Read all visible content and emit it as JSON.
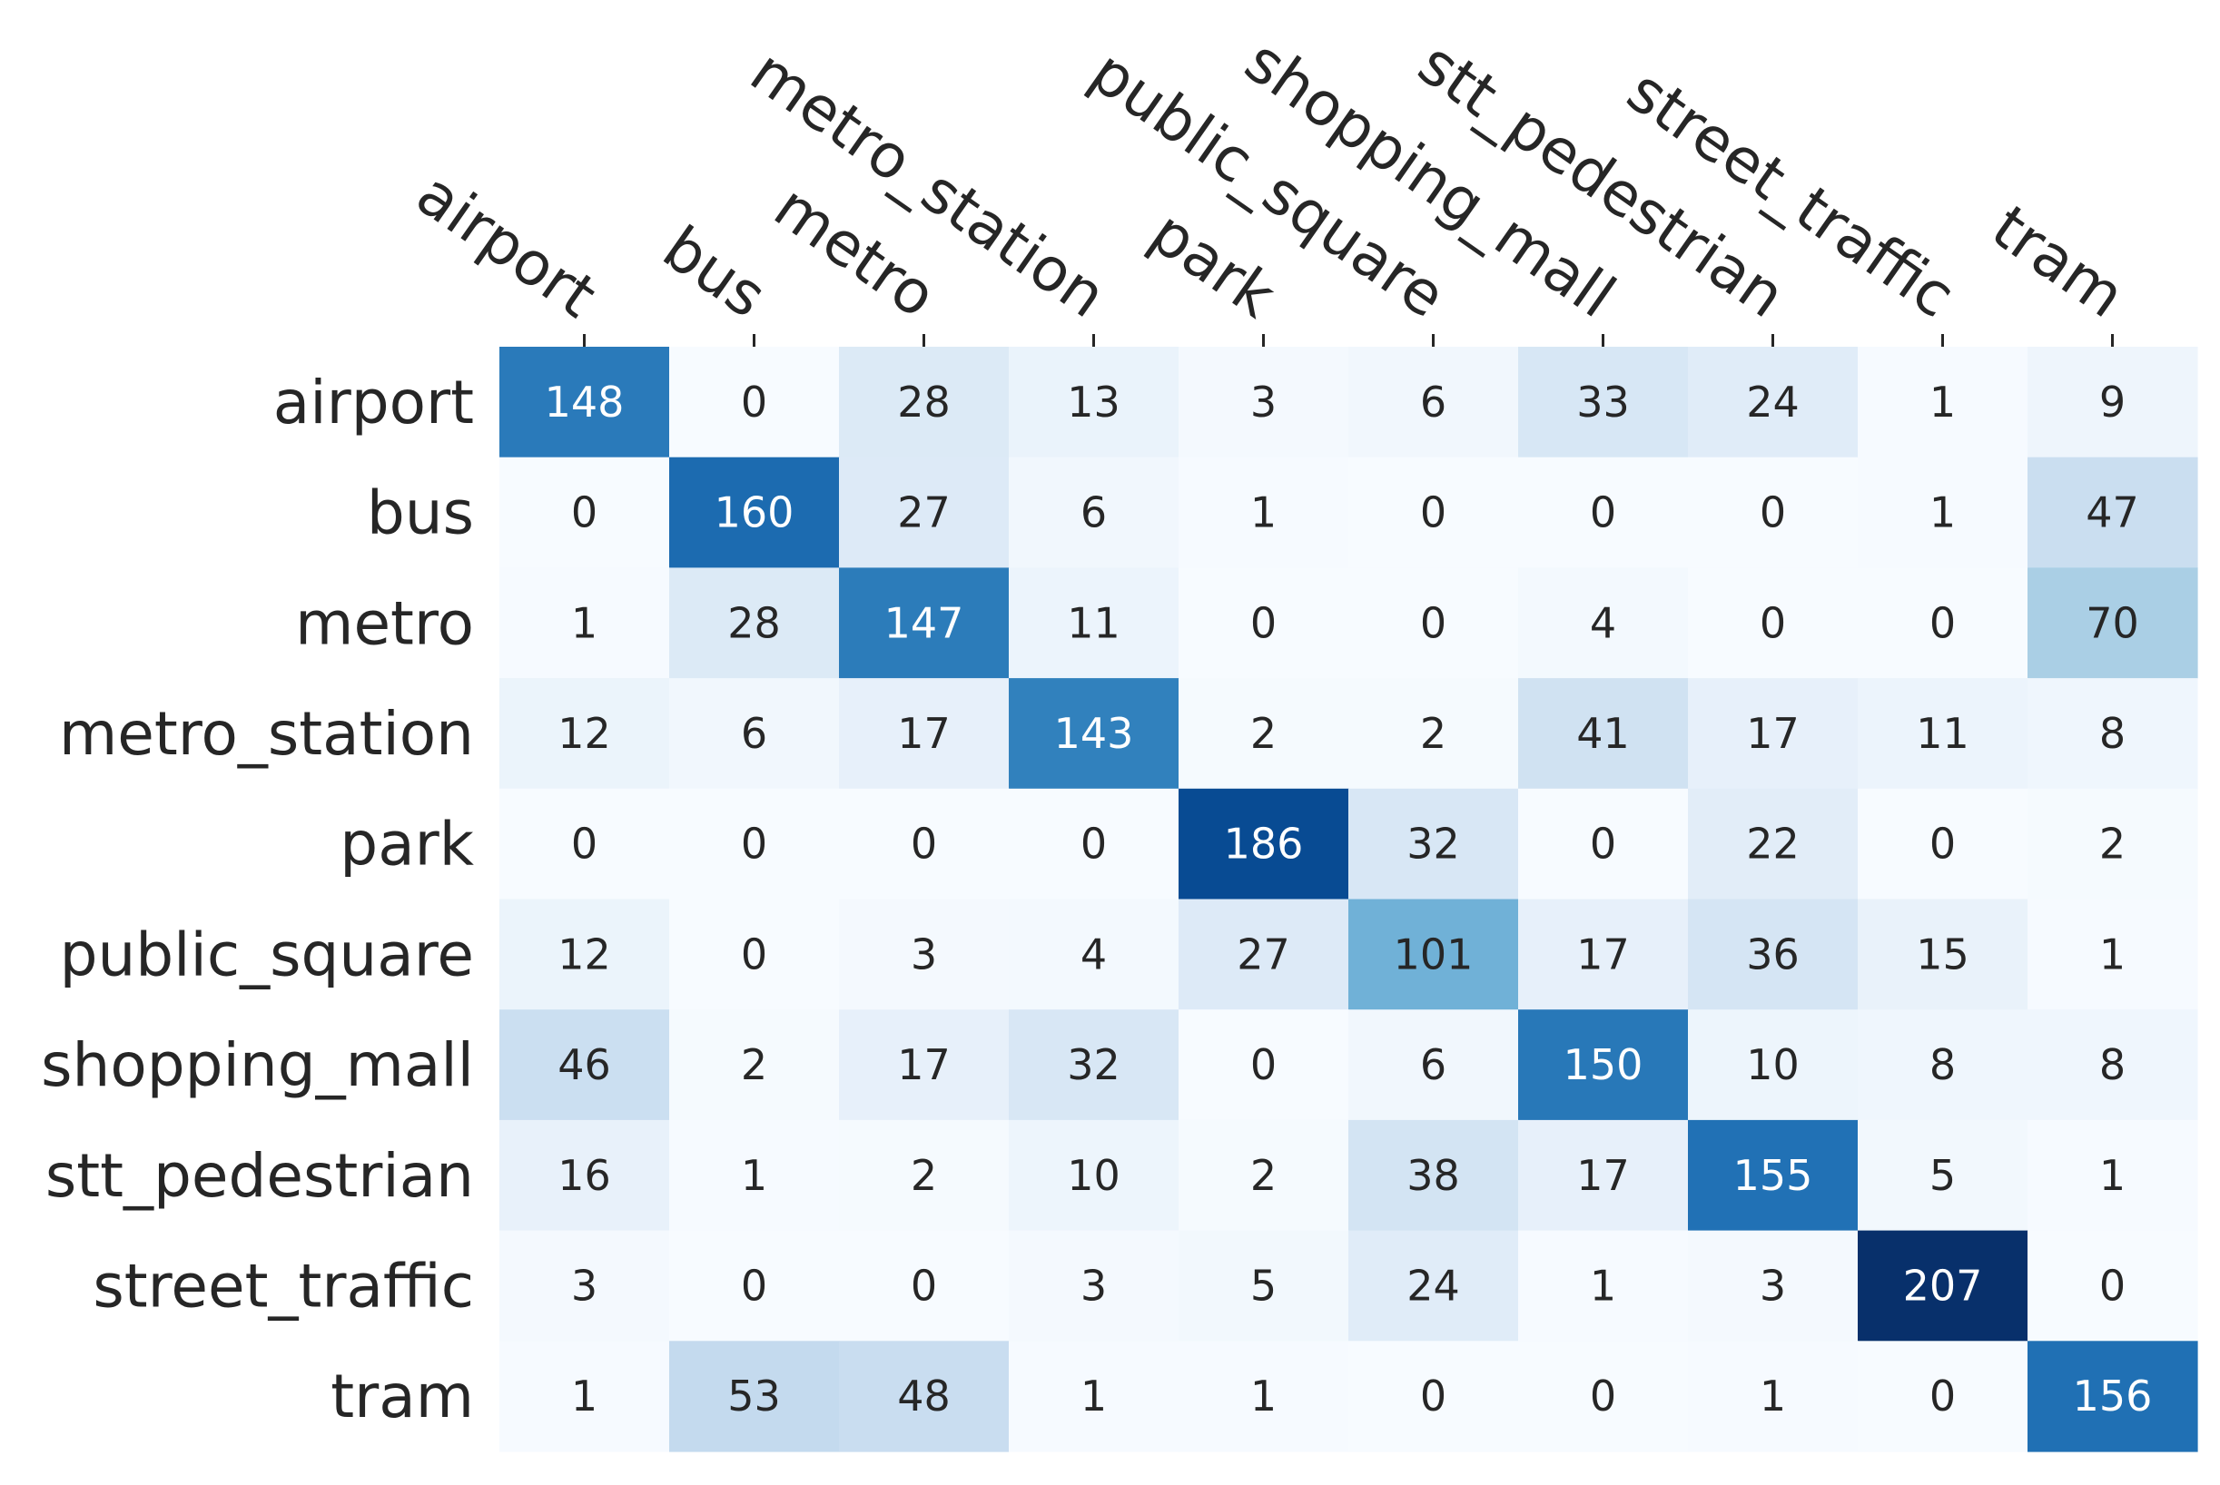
{
  "chart_data": {
    "type": "heatmap",
    "title": "",
    "xlabel": "",
    "ylabel": "",
    "columns": [
      "airport",
      "bus",
      "metro",
      "metro_station",
      "park",
      "public_square",
      "shopping_mall",
      "stt_pedestrian",
      "street_traffic",
      "tram"
    ],
    "rows": [
      "airport",
      "bus",
      "metro",
      "metro_station",
      "park",
      "public_square",
      "shopping_mall",
      "stt_pedestrian",
      "street_traffic",
      "tram"
    ],
    "values": [
      [
        148,
        0,
        28,
        13,
        3,
        6,
        33,
        24,
        1,
        9
      ],
      [
        0,
        160,
        27,
        6,
        1,
        0,
        0,
        0,
        1,
        47
      ],
      [
        1,
        28,
        147,
        11,
        0,
        0,
        4,
        0,
        0,
        70
      ],
      [
        12,
        6,
        17,
        143,
        2,
        2,
        41,
        17,
        11,
        8
      ],
      [
        0,
        0,
        0,
        0,
        186,
        32,
        0,
        22,
        0,
        2
      ],
      [
        12,
        0,
        3,
        4,
        27,
        101,
        17,
        36,
        15,
        1
      ],
      [
        46,
        2,
        17,
        32,
        0,
        6,
        150,
        10,
        8,
        8
      ],
      [
        16,
        1,
        2,
        10,
        2,
        38,
        17,
        155,
        5,
        1
      ],
      [
        3,
        0,
        0,
        3,
        5,
        24,
        1,
        3,
        207,
        0
      ],
      [
        1,
        53,
        48,
        1,
        1,
        0,
        0,
        1,
        0,
        156
      ]
    ],
    "vmin": 0,
    "vmax": 207,
    "colormap": "Blues",
    "colormap_stops": [
      "#f7fbff",
      "#deebf7",
      "#c6dbef",
      "#9ecae1",
      "#6baed6",
      "#4292c6",
      "#2171b5",
      "#08519c",
      "#08306b"
    ],
    "x_axis_position": "top",
    "annotations": true,
    "colorbar": false,
    "grid": false,
    "colors": {
      "label_text": "#262626",
      "cell_text_dark": "#262626",
      "cell_text_light": "#ffffff"
    }
  }
}
